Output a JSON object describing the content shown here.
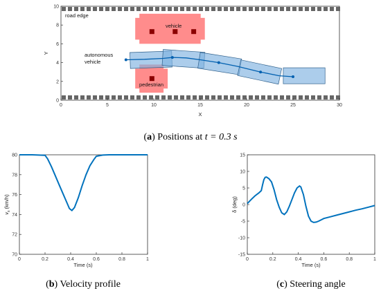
{
  "chart_data": [
    {
      "id": "a",
      "type": "scatter",
      "caption_letter": "a",
      "caption_text": "Positions at ",
      "caption_math": "t = 0.3 s",
      "xlabel": "X",
      "ylabel": "Y",
      "xlim": [
        0,
        30
      ],
      "ylim": [
        0,
        10
      ],
      "xticks": [
        0,
        5,
        10,
        15,
        20,
        25,
        30
      ],
      "yticks": [
        0,
        2,
        4,
        6,
        8,
        10
      ],
      "annotations": {
        "road_edge": "road edge",
        "vehicle": "vehicle",
        "autonomous_1": "autonomous",
        "autonomous_2": "vehicle",
        "pedestrian": "pedestrian"
      },
      "vehicle_box": {
        "x": [
          8,
          15.5
        ],
        "y": [
          6,
          9.2
        ]
      },
      "vehicle_points": [
        [
          9.8,
          7.3
        ],
        [
          12.3,
          7.3
        ],
        [
          14.3,
          7.3
        ]
      ],
      "pedestrian_box": {
        "x": [
          8,
          11.5
        ],
        "y": [
          0.8,
          3.8
        ]
      },
      "pedestrian_points": [
        [
          9.8,
          2.3
        ]
      ],
      "av_boxes": [
        {
          "center": [
            9.7,
            4.3
          ],
          "length": 4.5,
          "width": 1.7,
          "angle_deg": 2
        },
        {
          "center": [
            13.2,
            4.4
          ],
          "length": 4.5,
          "width": 1.7,
          "angle_deg": -4
        },
        {
          "center": [
            17.1,
            3.9
          ],
          "length": 4.5,
          "width": 1.7,
          "angle_deg": -9
        },
        {
          "center": [
            21.4,
            3.0
          ],
          "length": 4.5,
          "width": 1.7,
          "angle_deg": -12
        },
        {
          "center": [
            26.2,
            2.6
          ],
          "length": 4.5,
          "width": 1.7,
          "angle_deg": 0
        }
      ],
      "trajectory": [
        [
          7,
          4.3
        ],
        [
          9,
          4.35
        ],
        [
          11,
          4.45
        ],
        [
          12,
          4.55
        ],
        [
          13.5,
          4.5
        ],
        [
          15,
          4.3
        ],
        [
          17,
          4.0
        ],
        [
          19,
          3.6
        ],
        [
          21.5,
          3.0
        ],
        [
          23.5,
          2.6
        ],
        [
          25,
          2.5
        ]
      ],
      "trajectory_markers": [
        [
          7,
          4.3
        ],
        [
          12,
          4.55
        ],
        [
          17,
          4.0
        ],
        [
          21.5,
          3.0
        ],
        [
          25,
          2.5
        ]
      ]
    },
    {
      "id": "b",
      "type": "line",
      "caption_letter": "b",
      "caption_text": "Velocity profile",
      "xlabel": "Time (s)",
      "ylabel": "v_x (km/h)",
      "xlim": [
        0,
        1
      ],
      "ylim": [
        70,
        80
      ],
      "xticks": [
        0,
        0.2,
        0.4,
        0.6,
        0.8,
        1
      ],
      "xtick_labels": [
        "0",
        "0.2",
        "0.4",
        "0.6",
        "0.8",
        "1"
      ],
      "yticks": [
        70,
        72,
        74,
        76,
        78,
        80
      ],
      "series": [
        {
          "x": [
            0,
            0.1,
            0.2,
            0.22,
            0.25,
            0.28,
            0.31,
            0.34,
            0.37,
            0.39,
            0.41,
            0.43,
            0.46,
            0.49,
            0.52,
            0.55,
            0.58,
            0.6,
            0.65,
            0.7,
            0.8,
            0.9,
            1.0
          ],
          "values": [
            80,
            80,
            79.95,
            79.6,
            78.8,
            77.9,
            77.0,
            76.1,
            75.2,
            74.6,
            74.4,
            74.7,
            75.7,
            76.9,
            78.0,
            78.9,
            79.5,
            79.85,
            79.97,
            80,
            80,
            80,
            80
          ]
        }
      ]
    },
    {
      "id": "c",
      "type": "line",
      "caption_letter": "c",
      "caption_text": "Steering angle",
      "xlabel": "Time (s)",
      "ylabel": "δ (deg)",
      "xlim": [
        0,
        1
      ],
      "ylim": [
        -15,
        15
      ],
      "xticks": [
        0,
        0.2,
        0.4,
        0.6,
        0.8,
        1
      ],
      "xtick_labels": [
        "0",
        "0.2",
        "0.4",
        "0.6",
        "0.8",
        "1"
      ],
      "yticks": [
        -15,
        -10,
        -5,
        0,
        5,
        10,
        15
      ],
      "series": [
        {
          "x": [
            0,
            0.03,
            0.06,
            0.09,
            0.11,
            0.12,
            0.13,
            0.14,
            0.15,
            0.17,
            0.19,
            0.21,
            0.23,
            0.25,
            0.27,
            0.29,
            0.31,
            0.33,
            0.35,
            0.37,
            0.39,
            0.41,
            0.42,
            0.44,
            0.46,
            0.48,
            0.5,
            0.52,
            0.54,
            0.56,
            0.58,
            0.6,
            0.65,
            0.7,
            0.75,
            0.8,
            0.85,
            0.9,
            0.95,
            1.0
          ],
          "values": [
            0.3,
            1.5,
            2.6,
            3.5,
            4.2,
            6.0,
            7.5,
            8.2,
            8.3,
            7.8,
            6.8,
            4.5,
            1.5,
            -0.8,
            -2.5,
            -3.0,
            -2.2,
            -0.5,
            1.5,
            3.5,
            5.0,
            5.6,
            5.3,
            3.0,
            -0.5,
            -3.5,
            -5.0,
            -5.4,
            -5.3,
            -5.0,
            -4.6,
            -4.2,
            -3.7,
            -3.2,
            -2.7,
            -2.2,
            -1.7,
            -1.3,
            -0.8,
            -0.3
          ]
        }
      ]
    }
  ]
}
